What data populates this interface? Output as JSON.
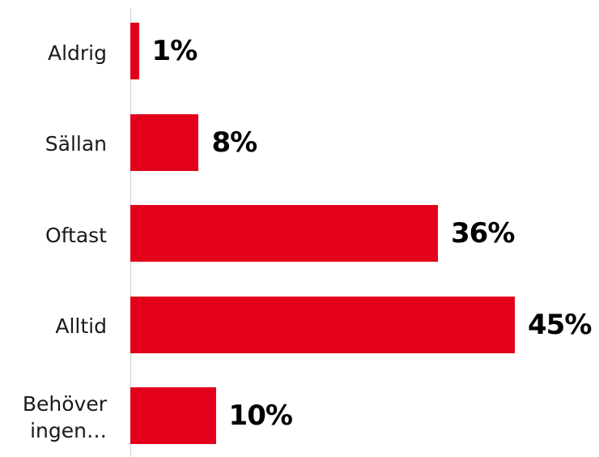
{
  "colors": {
    "bar": "#e2001a",
    "axis": "#d0d0d0",
    "label": "#1a1a1a",
    "value_label": "#000000"
  },
  "chart_data": {
    "type": "bar",
    "orientation": "horizontal",
    "categories": [
      "Aldrig",
      "Sällan",
      "Oftast",
      "Alltid",
      "Behöver\ningen…"
    ],
    "values": [
      1,
      8,
      36,
      45,
      10
    ],
    "value_labels": [
      "1%",
      "8%",
      "36%",
      "45%",
      "10%"
    ],
    "unit": "%",
    "title": "",
    "xlabel": "",
    "ylabel": "",
    "xlim": [
      0,
      45
    ],
    "grid": false,
    "legend": "none"
  }
}
